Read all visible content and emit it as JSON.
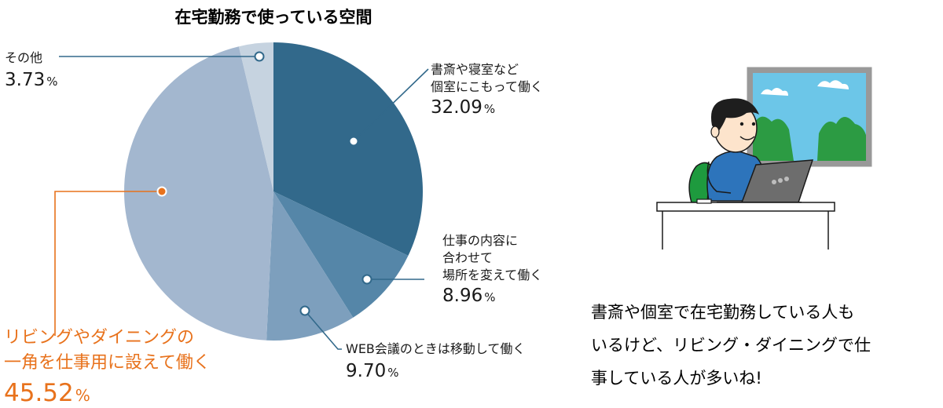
{
  "chart_data": {
    "type": "pie",
    "title": "在宅勤務で使っている空間",
    "slices": [
      {
        "label_lines": [
          "書斎や寝室など",
          "個室にこもって働く"
        ],
        "value": 32.09,
        "value_text": "32.09",
        "unit": "%",
        "color": "#32698b",
        "highlight": false
      },
      {
        "label_lines": [
          "仕事の内容に",
          "合わせて",
          "場所を変えて働く"
        ],
        "value": 8.96,
        "value_text": "8.96",
        "unit": "%",
        "color": "#5586a8",
        "highlight": false
      },
      {
        "label_lines": [
          "WEB会議のときは移動して働く"
        ],
        "value": 9.7,
        "value_text": "9.70",
        "unit": "%",
        "color": "#7d9fbd",
        "highlight": false
      },
      {
        "label_lines": [
          "リビングやダイニングの",
          "一角を仕事用に設えて働く"
        ],
        "value": 45.52,
        "value_text": "45.52",
        "unit": "%",
        "color": "#a3b7cf",
        "highlight": true
      },
      {
        "label_lines": [
          "その他"
        ],
        "value": 3.73,
        "value_text": "3.73",
        "unit": "%",
        "color": "#c6d3e0",
        "highlight": false
      }
    ],
    "leader_color": "#32698b",
    "highlight_color": "#e8721c"
  },
  "comment": {
    "lines": [
      "書斎や個室で在宅勤務している人も",
      "いるけど、リビング・ダイニングで仕",
      "事している人が多いね!"
    ]
  }
}
